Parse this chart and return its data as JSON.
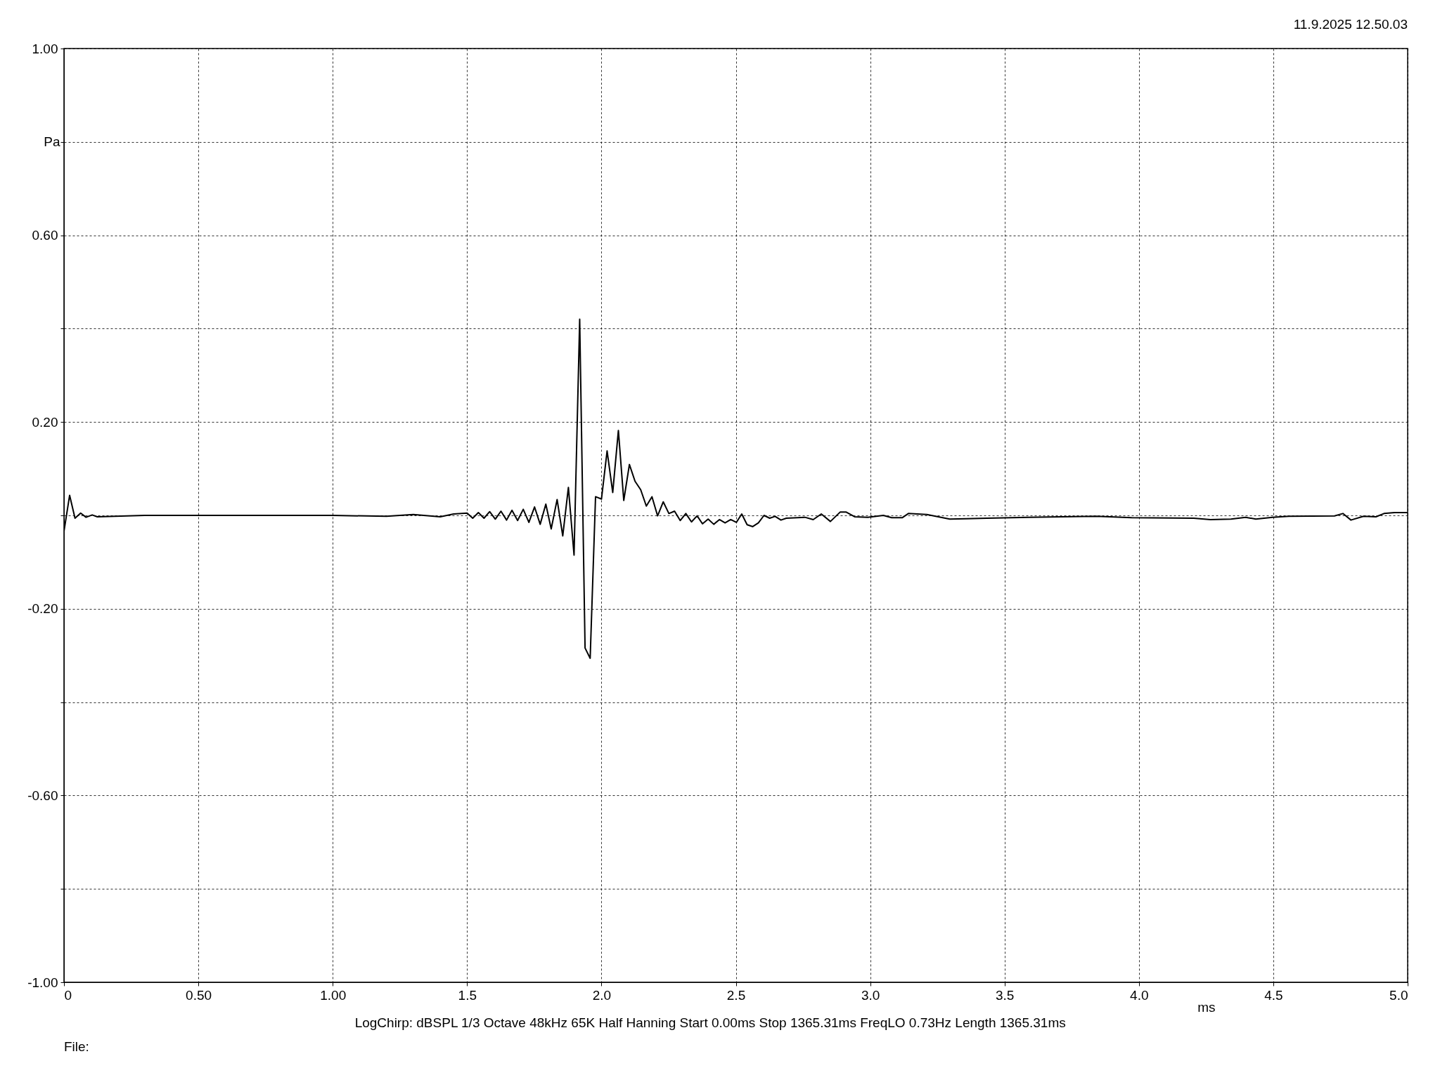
{
  "chart_data": {
    "type": "line",
    "xlabel": "ms",
    "ylabel": "Pa",
    "x": [
      0,
      0.021,
      0.041,
      0.062,
      0.082,
      0.105,
      0.124,
      0.3,
      1.0,
      1.2,
      1.3,
      1.4,
      1.45,
      1.5,
      1.521,
      1.542,
      1.563,
      1.584,
      1.605,
      1.626,
      1.647,
      1.667,
      1.688,
      1.709,
      1.73,
      1.751,
      1.772,
      1.793,
      1.813,
      1.835,
      1.856,
      1.877,
      1.898,
      1.919,
      1.939,
      1.958,
      1.978,
      2.0,
      2.021,
      2.042,
      2.063,
      2.083,
      2.104,
      2.125,
      2.146,
      2.167,
      2.188,
      2.209,
      2.23,
      2.251,
      2.272,
      2.293,
      2.314,
      2.335,
      2.356,
      2.376,
      2.397,
      2.418,
      2.439,
      2.46,
      2.481,
      2.502,
      2.522,
      2.542,
      2.563,
      2.584,
      2.605,
      2.626,
      2.646,
      2.668,
      2.688,
      2.757,
      2.788,
      2.818,
      2.852,
      2.888,
      2.911,
      2.942,
      2.991,
      3.049,
      3.08,
      3.119,
      3.142,
      3.211,
      3.296,
      3.357,
      3.434,
      3.588,
      3.842,
      3.973,
      4.204,
      4.266,
      4.343,
      4.397,
      4.435,
      4.497,
      4.558,
      4.728,
      4.759,
      4.789,
      4.836,
      4.882,
      4.912,
      4.951,
      5.0
    ],
    "series": [
      {
        "color": "#000000",
        "values": [
          -0.034,
          0.043,
          -0.006,
          0.005,
          -0.004,
          0.001,
          -0.003,
          0,
          0,
          -0.002,
          0.002,
          -0.003,
          0.003,
          0.005,
          -0.006,
          0.006,
          -0.006,
          0.008,
          -0.008,
          0.009,
          -0.01,
          0.011,
          -0.011,
          0.013,
          -0.015,
          0.018,
          -0.019,
          0.024,
          -0.029,
          0.034,
          -0.044,
          0.06,
          -0.085,
          0.42,
          -0.284,
          -0.306,
          0.04,
          0.035,
          0.138,
          0.049,
          0.182,
          0.032,
          0.109,
          0.073,
          0.055,
          0.02,
          0.04,
          -0.001,
          0.029,
          0.004,
          0.009,
          -0.011,
          0.004,
          -0.014,
          -0.001,
          -0.018,
          -0.008,
          -0.019,
          -0.009,
          -0.016,
          -0.009,
          -0.015,
          0.003,
          -0.02,
          -0.024,
          -0.016,
          0,
          -0.006,
          -0.002,
          -0.01,
          -0.006,
          -0.004,
          -0.009,
          0.003,
          -0.013,
          0.007,
          0.007,
          -0.003,
          -0.004,
          0,
          -0.005,
          -0.005,
          0.004,
          0.002,
          -0.008,
          -0.007,
          -0.006,
          -0.004,
          -0.002,
          -0.005,
          -0.006,
          -0.009,
          -0.008,
          -0.004,
          -0.008,
          -0.004,
          -0.002,
          -0.001,
          0.004,
          -0.01,
          -0.002,
          -0.003,
          0.004,
          0.006,
          0.006
        ]
      }
    ],
    "xlim": [
      0,
      5
    ],
    "xticks": [
      0,
      {
        "value": 0.5,
        "label": "0.50"
      },
      {
        "value": 1,
        "label": "1.00"
      },
      1.5,
      {
        "value": 2,
        "label": "2.0"
      },
      2.5,
      {
        "value": 3,
        "label": "3.0"
      },
      3.5,
      {
        "value": 4,
        "label": "4.0"
      },
      4.5,
      {
        "value": 5,
        "label": "5.0"
      }
    ],
    "ylim": [
      -1,
      1
    ],
    "yticks": [
      {
        "value": -1,
        "label": "-1.00"
      },
      {
        "value": -0.8,
        "label": null
      },
      {
        "value": -0.6,
        "label": "-0.60"
      },
      {
        "value": -0.4,
        "label": null
      },
      {
        "value": -0.2,
        "label": "-0.20"
      },
      {
        "value": 0,
        "label": null
      },
      {
        "value": 0.2,
        "label": "0.20"
      },
      {
        "value": 0.4,
        "label": null
      },
      {
        "value": 0.6,
        "label": "0.60"
      },
      {
        "value": 0.8,
        "label": null
      },
      {
        "value": 1,
        "label": "1.00"
      }
    ],
    "grid": true,
    "line_style": "solid",
    "annotations": [
      "11.9.2025 12.50.03",
      "LogChirp:  dBSPL   1/3 Octave   48kHz   65K   Half Hanning   Start 0.00ms    Stop 1365.31ms    FreqLO 0.73Hz    Length 1365.31ms",
      "File:"
    ]
  }
}
